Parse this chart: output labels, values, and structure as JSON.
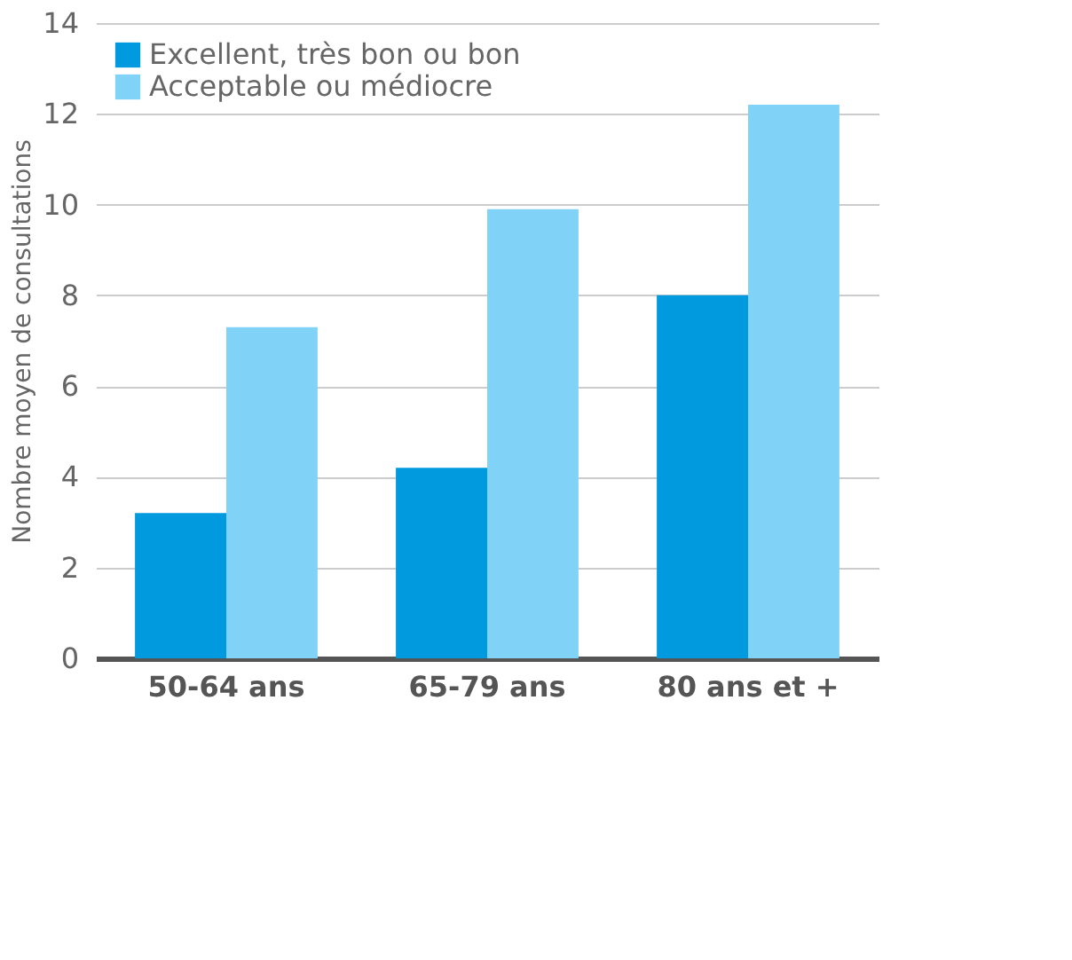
{
  "chart_data": {
    "type": "bar",
    "ylabel": "Nombre moyen de consultations",
    "categories": [
      "50-64 ans",
      "65-79 ans",
      "80 ans et +"
    ],
    "series": [
      {
        "name": "Excellent, très bon ou bon",
        "color": "#019ade",
        "values": [
          3.2,
          4.2,
          8.0
        ]
      },
      {
        "name": "Acceptable ou médiocre",
        "color": "#80d3f7",
        "values": [
          7.3,
          9.9,
          12.2
        ]
      }
    ],
    "ylim": [
      0,
      14
    ],
    "yticks": [
      0,
      2,
      4,
      6,
      8,
      10,
      12,
      14
    ],
    "grid": "y",
    "legend": "top left"
  }
}
